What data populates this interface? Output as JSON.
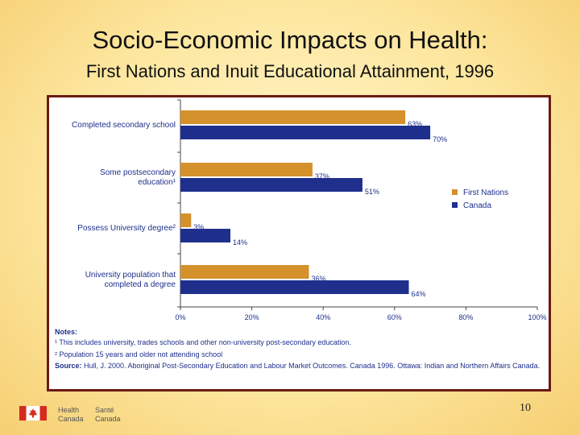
{
  "slide": {
    "title": "Socio-Economic Impacts on Health:",
    "subtitle": "First Nations and Inuit Educational Attainment, 1996",
    "page_number": "10"
  },
  "logo": {
    "en_line1": "Health",
    "en_line2": "Canada",
    "fr_line1": "Santé",
    "fr_line2": "Canada"
  },
  "colors": {
    "first_nations": "#d4912c",
    "canada": "#1e2f8c",
    "panel_border": "#6b1a12",
    "text": "#1e2f8c"
  },
  "chart_data": {
    "type": "bar",
    "orientation": "horizontal",
    "categories": [
      [
        "Completed secondary school"
      ],
      [
        "Some postsecondary",
        "education¹"
      ],
      [
        "Possess University degree²"
      ],
      [
        "University population that",
        "completed a degree"
      ]
    ],
    "series": [
      {
        "name": "First Nations",
        "values": [
          63,
          37,
          3,
          36
        ],
        "labels": [
          "63%",
          "37%",
          "3%",
          "36%"
        ]
      },
      {
        "name": "Canada",
        "values": [
          70,
          51,
          14,
          64
        ],
        "labels": [
          "70%",
          "51%",
          "14%",
          "64%"
        ]
      }
    ],
    "xticks": [
      "0%",
      "20%",
      "40%",
      "60%",
      "80%",
      "100%"
    ],
    "xlim": [
      0,
      100
    ],
    "legend_position": "right",
    "grid": false
  },
  "notes": {
    "heading": "Notes:",
    "note1": "¹ This includes university, trades schools and other non-university post-secondary education.",
    "note2": "² Population 15 years and older not attending school",
    "source_label": "Source:",
    "source_text": " Hull, J. 2000. Aboriginal Post-Secondary Education and Labour Market Outcomes. Canada 1996. Ottawa: Indian and Northern Affairs Canada."
  }
}
